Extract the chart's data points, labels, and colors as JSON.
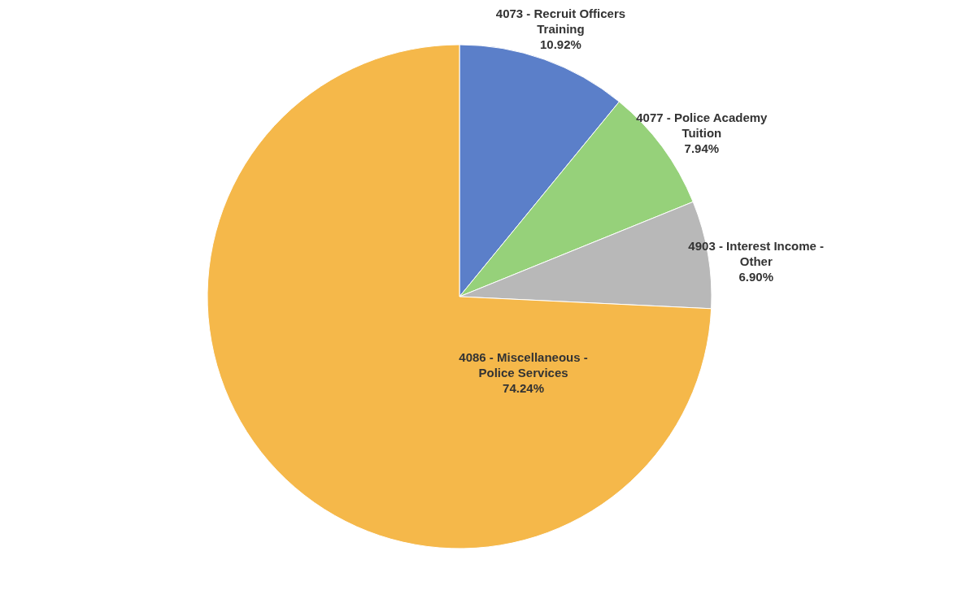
{
  "chart_data": {
    "type": "pie",
    "categories": [
      "4073 - Recruit Officers Training",
      "4077 - Police Academy Tuition",
      "4903 - Interest Income - Other",
      "4086 - Miscellaneous - Police Services"
    ],
    "values": [
      10.92,
      7.94,
      6.9,
      74.24
    ],
    "colors": [
      "#5b7fc9",
      "#96d17a",
      "#b8b8b8",
      "#f5b84a"
    ],
    "value_labels": [
      "10.92%",
      "7.94%",
      "6.90%",
      "74.24%"
    ],
    "legend": false
  }
}
